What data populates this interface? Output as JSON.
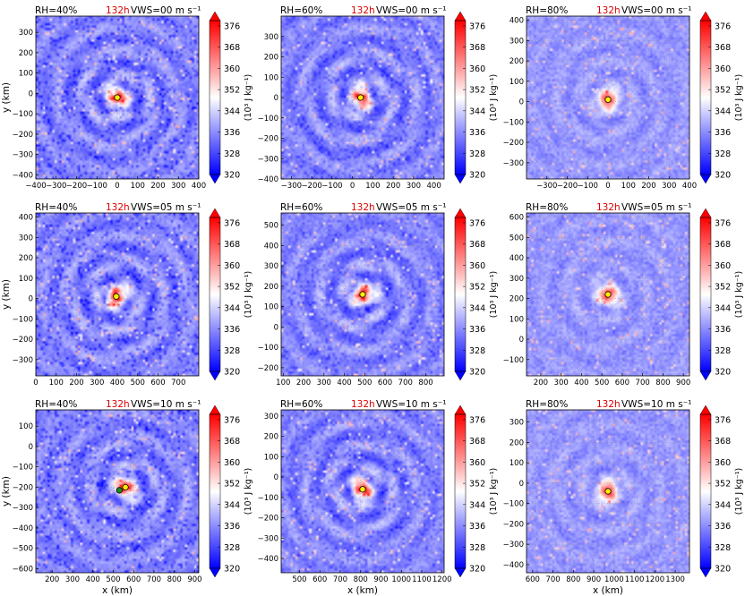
{
  "figure": {
    "time_label": "132h",
    "time_color": "#dd0000",
    "xlabel": "x (km)",
    "ylabel": "y (km)",
    "colorbar_label": "(10³ J kg⁻¹)",
    "colorbar_ticks": [
      "376",
      "368",
      "360",
      "352",
      "344",
      "336",
      "328",
      "320"
    ],
    "colormap": {
      "low": "#0000ff",
      "mid": "#ffffff",
      "high": "#ff0000"
    }
  },
  "chart_data": [
    {
      "type": "heatmap",
      "rh": "RH=40%",
      "vws": "VWS=00 m s⁻¹",
      "xlim": [
        -400,
        400
      ],
      "ylim": [
        -420,
        380
      ],
      "xticks": [
        -400,
        -300,
        -200,
        -100,
        0,
        100,
        200,
        300,
        400
      ],
      "yticks": [
        -400,
        -300,
        -200,
        -100,
        0,
        100,
        200,
        300
      ],
      "center": [
        0,
        -20
      ],
      "secondary_center": null,
      "vmin": 320,
      "vmax": 380
    },
    {
      "type": "heatmap",
      "rh": "RH=60%",
      "vws": "VWS=00 m s⁻¹",
      "xlim": [
        -350,
        450
      ],
      "ylim": [
        -400,
        400
      ],
      "xticks": [
        -300,
        -200,
        -100,
        0,
        100,
        200,
        300,
        400
      ],
      "yticks": [
        -400,
        -300,
        -200,
        -100,
        0,
        100,
        200,
        300
      ],
      "center": [
        40,
        0
      ],
      "secondary_center": null,
      "vmin": 320,
      "vmax": 380
    },
    {
      "type": "heatmap",
      "rh": "RH=80%",
      "vws": "VWS=00 m s⁻¹",
      "xlim": [
        -400,
        400
      ],
      "ylim": [
        -380,
        420
      ],
      "xticks": [
        -300,
        -200,
        -100,
        0,
        100,
        200,
        300,
        400
      ],
      "yticks": [
        -300,
        -200,
        -100,
        0,
        100,
        200,
        300,
        400
      ],
      "center": [
        0,
        10
      ],
      "secondary_center": null,
      "vmin": 320,
      "vmax": 380
    },
    {
      "type": "heatmap",
      "rh": "RH=40%",
      "vws": "VWS=05 m s⁻¹",
      "xlim": [
        0,
        800
      ],
      "ylim": [
        -380,
        420
      ],
      "xticks": [
        0,
        100,
        200,
        300,
        400,
        500,
        600,
        700
      ],
      "yticks": [
        -300,
        -200,
        -100,
        0,
        100,
        200,
        300,
        400
      ],
      "center": [
        395,
        10
      ],
      "secondary_center": null,
      "vmin": 320,
      "vmax": 380
    },
    {
      "type": "heatmap",
      "rh": "RH=60%",
      "vws": "VWS=05 m s⁻¹",
      "xlim": [
        90,
        890
      ],
      "ylim": [
        -240,
        560
      ],
      "xticks": [
        100,
        200,
        300,
        400,
        500,
        600,
        700,
        800
      ],
      "yticks": [
        -200,
        -100,
        0,
        100,
        200,
        300,
        400,
        500
      ],
      "center": [
        490,
        160
      ],
      "secondary_center": null,
      "vmin": 320,
      "vmax": 380
    },
    {
      "type": "heatmap",
      "rh": "RH=80%",
      "vws": "VWS=05 m s⁻¹",
      "xlim": [
        130,
        930
      ],
      "ylim": [
        -180,
        620
      ],
      "xticks": [
        200,
        300,
        400,
        500,
        600,
        700,
        800,
        900
      ],
      "yticks": [
        -100,
        0,
        100,
        200,
        300,
        400,
        500,
        600
      ],
      "center": [
        530,
        220
      ],
      "secondary_center": null,
      "vmin": 320,
      "vmax": 380
    },
    {
      "type": "heatmap",
      "rh": "RH=40%",
      "vws": "VWS=10 m s⁻¹",
      "xlim": [
        120,
        920
      ],
      "ylim": [
        -620,
        180
      ],
      "xticks": [
        200,
        300,
        400,
        500,
        600,
        700,
        800,
        900
      ],
      "yticks": [
        -600,
        -500,
        -400,
        -300,
        -200,
        -100,
        0,
        100
      ],
      "center": [
        560,
        -200
      ],
      "secondary_center": [
        530,
        -215
      ],
      "vmin": 320,
      "vmax": 380
    },
    {
      "type": "heatmap",
      "rh": "RH=60%",
      "vws": "VWS=10 m s⁻¹",
      "xlim": [
        410,
        1210
      ],
      "ylim": [
        -470,
        330
      ],
      "xticks": [
        500,
        600,
        700,
        800,
        900,
        1000,
        1100,
        1200
      ],
      "yticks": [
        -400,
        -300,
        -200,
        -100,
        0,
        100,
        200,
        300
      ],
      "center": [
        810,
        -60
      ],
      "secondary_center": null,
      "vmin": 320,
      "vmax": 380
    },
    {
      "type": "heatmap",
      "rh": "RH=80%",
      "vws": "VWS=10 m s⁻¹",
      "xlim": [
        570,
        1370
      ],
      "ylim": [
        -440,
        360
      ],
      "xticks": [
        600,
        700,
        800,
        900,
        1000,
        1100,
        1200,
        1300
      ],
      "yticks": [
        -400,
        -300,
        -200,
        -100,
        0,
        100,
        200,
        300
      ],
      "center": [
        970,
        -40
      ],
      "secondary_center": null,
      "vmin": 320,
      "vmax": 380
    }
  ]
}
